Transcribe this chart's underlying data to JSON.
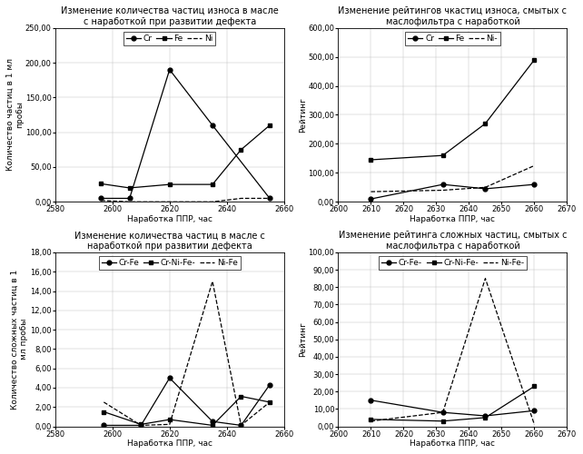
{
  "top_left": {
    "title": "Изменение количества частиц износа в масле\nс наработкой при развитии дефекта",
    "xlabel": "Наработка ППР, час",
    "ylabel": "Количество частиц в 1 мл\nпробы",
    "xlim": [
      2580,
      2660
    ],
    "xticks": [
      2580,
      2600,
      2620,
      2640,
      2660
    ],
    "ylim": [
      0.0,
      250.0
    ],
    "ytick_vals": [
      0,
      50,
      100,
      150,
      200,
      250
    ],
    "ytick_labels": [
      "0,00",
      "50,00",
      "100,00",
      "150,00",
      "200,00",
      "250,00"
    ],
    "series": [
      {
        "name": "Cr",
        "x": [
          2596,
          2606,
          2620,
          2635,
          2655
        ],
        "y": [
          5,
          5,
          190,
          110,
          5
        ],
        "style": "solid",
        "marker": "o"
      },
      {
        "name": "Fe",
        "x": [
          2596,
          2606,
          2620,
          2635,
          2645,
          2655
        ],
        "y": [
          26,
          20,
          25,
          25,
          75,
          110
        ],
        "style": "solid",
        "marker": "s"
      },
      {
        "name": "Ni",
        "x": [
          2596,
          2606,
          2620,
          2635,
          2645,
          2655
        ],
        "y": [
          2,
          0,
          0,
          0,
          5,
          5
        ],
        "style": "dashed",
        "marker": null
      }
    ]
  },
  "top_right": {
    "title": "Изменение рейтингов чкастиц износа, смытых с\nмаслофильтра с наработкой",
    "xlabel": "Наработка ППР, час",
    "ylabel": "Рейтинг",
    "xlim": [
      2600,
      2670
    ],
    "xticks": [
      2600,
      2610,
      2620,
      2630,
      2640,
      2650,
      2660,
      2670
    ],
    "ylim": [
      0.0,
      600.0
    ],
    "ytick_vals": [
      0,
      100,
      200,
      300,
      400,
      500,
      600
    ],
    "ytick_labels": [
      "0,00",
      "100,00",
      "200,00",
      "300,00",
      "400,00",
      "500,00",
      "600,00"
    ],
    "series": [
      {
        "name": "Cr",
        "x": [
          2610,
          2632,
          2645,
          2660
        ],
        "y": [
          10,
          60,
          45,
          60
        ],
        "style": "solid",
        "marker": "o"
      },
      {
        "name": "Fe",
        "x": [
          2610,
          2632,
          2645,
          2660
        ],
        "y": [
          145,
          160,
          270,
          490
        ],
        "style": "solid",
        "marker": "s"
      },
      {
        "name": "Ni-",
        "x": [
          2610,
          2632,
          2645,
          2660
        ],
        "y": [
          35,
          40,
          50,
          125
        ],
        "style": "dashed",
        "marker": null
      }
    ]
  },
  "bottom_left": {
    "title": "Изменение количества частиц в масле с\nнаработкой при развитии дефекта",
    "xlabel": "Наработка ППР, час",
    "ylabel": "Количество сложных частиц в 1\nмл пробы",
    "xlim": [
      2580,
      2660
    ],
    "xticks": [
      2580,
      2600,
      2620,
      2640,
      2660
    ],
    "ylim": [
      0.0,
      18.0
    ],
    "ytick_vals": [
      0,
      2,
      4,
      6,
      8,
      10,
      12,
      14,
      16,
      18
    ],
    "ytick_labels": [
      "0,00",
      "2,00",
      "4,00",
      "6,00",
      "8,00",
      "10,00",
      "12,00",
      "14,00",
      "16,00",
      "18,00"
    ],
    "series": [
      {
        "name": "Cr-Fe",
        "x": [
          2597,
          2610,
          2620,
          2635,
          2645,
          2655
        ],
        "y": [
          0.1,
          0.1,
          5.0,
          0.5,
          0.1,
          4.3
        ],
        "style": "solid",
        "marker": "o"
      },
      {
        "name": "Cr-Ni-Fe-",
        "x": [
          2597,
          2610,
          2620,
          2635,
          2645,
          2655
        ],
        "y": [
          1.5,
          0.2,
          0.7,
          0.1,
          3.1,
          2.5
        ],
        "style": "solid",
        "marker": "s"
      },
      {
        "name": "Ni-Fe",
        "x": [
          2597,
          2610,
          2620,
          2635,
          2645,
          2655
        ],
        "y": [
          2.5,
          0.1,
          0.2,
          15.0,
          0.1,
          2.5
        ],
        "style": "dashed",
        "marker": null
      }
    ]
  },
  "bottom_right": {
    "title": "Изменение рейтинга сложных частиц, смытых с\nмаслофильтра с наработкой",
    "xlabel": "Наработка ППР, час",
    "ylabel": "Рейтинг",
    "xlim": [
      2600,
      2670
    ],
    "xticks": [
      2600,
      2610,
      2620,
      2630,
      2640,
      2650,
      2660,
      2670
    ],
    "ylim": [
      0.0,
      100.0
    ],
    "ytick_vals": [
      0,
      10,
      20,
      30,
      40,
      50,
      60,
      70,
      80,
      90,
      100
    ],
    "ytick_labels": [
      "0,00",
      "10,00",
      "20,00",
      "30,00",
      "40,00",
      "50,00",
      "60,00",
      "70,00",
      "80,00",
      "90,00",
      "100,00"
    ],
    "series": [
      {
        "name": "Cr-Fe-",
        "x": [
          2610,
          2632,
          2645,
          2660
        ],
        "y": [
          15,
          8,
          6,
          9
        ],
        "style": "solid",
        "marker": "o"
      },
      {
        "name": "Cr-Ni-Fe-",
        "x": [
          2610,
          2632,
          2645,
          2660
        ],
        "y": [
          4,
          3,
          5,
          23
        ],
        "style": "solid",
        "marker": "s"
      },
      {
        "name": "Ni-Fe-",
        "x": [
          2610,
          2632,
          2645,
          2660
        ],
        "y": [
          3,
          8,
          85,
          1
        ],
        "style": "dashed",
        "marker": null
      }
    ]
  },
  "line_color": "#000000",
  "background_color": "#ffffff",
  "title_fontsize": 7.0,
  "label_fontsize": 6.5,
  "tick_fontsize": 6.0,
  "legend_fontsize": 6.5
}
